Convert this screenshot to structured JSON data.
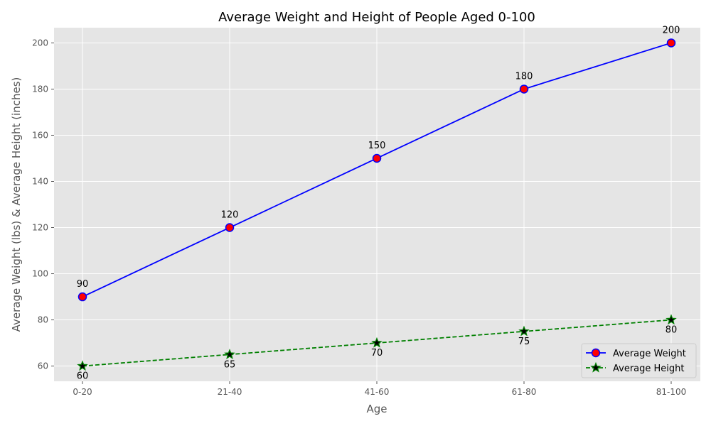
{
  "chart_data": {
    "type": "line",
    "title": "Average Weight and Height of People Aged 0-100",
    "xlabel": "Age",
    "ylabel": "Average Weight (lbs) & Average Height (inches)",
    "categories": [
      "0-20",
      "21-40",
      "41-60",
      "61-80",
      "81-100"
    ],
    "ylim": [
      53.4,
      206.6
    ],
    "yticks": [
      60,
      80,
      100,
      120,
      140,
      160,
      180,
      200
    ],
    "grid": true,
    "legend_position": "bottom-right",
    "series": [
      {
        "name": "Average Weight",
        "values": [
          90,
          120,
          150,
          180,
          200
        ],
        "line_color": "#0000ff",
        "line_style": "solid",
        "marker": "circle",
        "marker_fill": "#ff0000",
        "label_position": "above"
      },
      {
        "name": "Average Height",
        "values": [
          60,
          65,
          70,
          75,
          80
        ],
        "line_color": "#008000",
        "line_style": "dashed",
        "marker": "star",
        "marker_fill": "#000000",
        "label_position": "below"
      }
    ],
    "colors": {
      "plot_background": "#e5e5e5",
      "grid": "#ffffff"
    }
  }
}
